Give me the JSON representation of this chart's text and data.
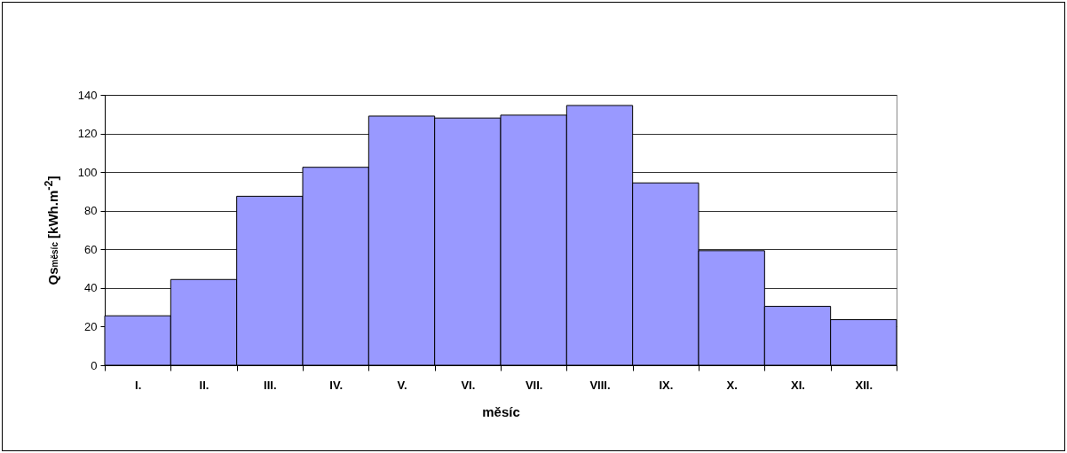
{
  "chart_data": {
    "type": "bar",
    "xlabel": "měsíc",
    "ylabel": "Qs$_{měsíc}$  [kWh.m$^{-2}$]",
    "categories": [
      "I.",
      "II.",
      "III.",
      "IV.",
      "V.",
      "VI.",
      "VII.",
      "VIII.",
      "IX.",
      "X.",
      "XI.",
      "XII."
    ],
    "values": [
      25.6,
      44.4,
      87.5,
      102.5,
      129,
      128,
      129.5,
      134.5,
      94.4,
      59.3,
      30.5,
      23.6
    ],
    "color": "#9999ff",
    "ylim": [
      0,
      140
    ],
    "yticks": [
      0,
      20,
      40,
      60,
      80,
      100,
      120,
      140
    ],
    "grid": "y"
  }
}
